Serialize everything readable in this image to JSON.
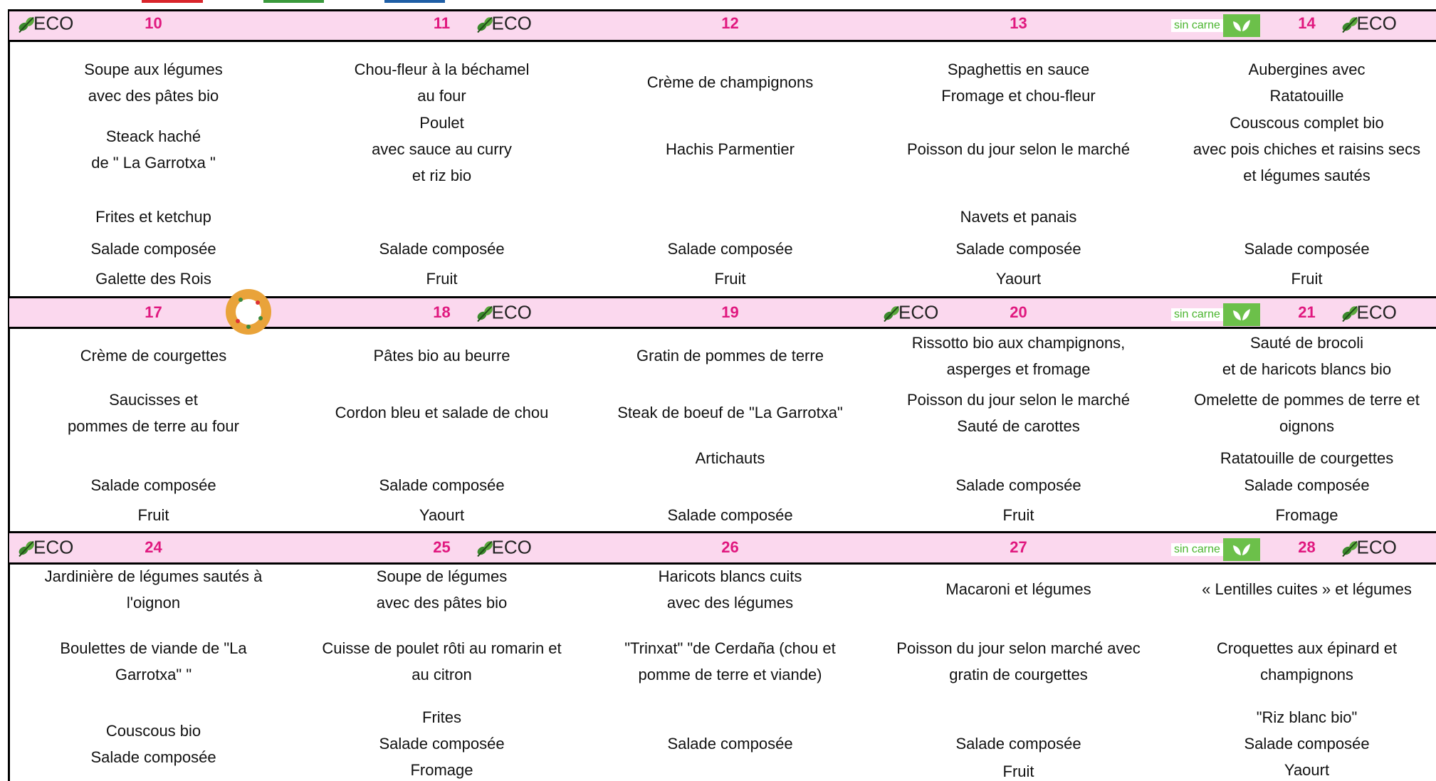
{
  "weeks": [
    {
      "days": [
        {
          "day": "10",
          "badges": [
            "ECO"
          ],
          "slots": [
            [
              "Soupe aux légumes",
              "avec des pâtes bio"
            ],
            [
              "Steack haché",
              "de \" La Garrotxa \""
            ],
            [
              "Frites et ketchup"
            ],
            [
              "Salade composée"
            ],
            [
              "Galette des Rois"
            ]
          ]
        },
        {
          "day": "11",
          "badges": [
            "ECO"
          ],
          "slots": [
            [
              "Chou-fleur à la béchamel",
              "au four"
            ],
            [
              "Poulet",
              "avec sauce au curry",
              "et riz bio"
            ],
            [],
            [
              "Salade composée"
            ],
            [
              "Fruit"
            ]
          ]
        },
        {
          "day": "12",
          "badges": [],
          "slots": [
            [
              "Crème de champignons"
            ],
            [
              "Hachis Parmentier"
            ],
            [],
            [
              "Salade composée"
            ],
            [
              "Fruit"
            ]
          ]
        },
        {
          "day": "13",
          "badges": [],
          "slots": [
            [
              "Spaghettis en sauce",
              "Fromage et chou-fleur"
            ],
            [
              "Poisson du jour selon le marché"
            ],
            [
              "Navets et panais"
            ],
            [
              "Salade composée"
            ],
            [
              "Yaourt"
            ]
          ]
        },
        {
          "day": "14",
          "badges": [
            "sin carne",
            "ECO"
          ],
          "slots": [
            [
              "Aubergines avec",
              "Ratatouille"
            ],
            [
              "Couscous complet  bio",
              "avec pois chiches et raisins secs",
              "et légumes sautés"
            ],
            [],
            [
              "Salade composée"
            ],
            [
              "Fruit"
            ]
          ]
        }
      ]
    },
    {
      "days": [
        {
          "day": "17",
          "badges": [],
          "slots": [
            [
              "Crème de courgettes"
            ],
            [
              "Saucisses et",
              "pommes de terre au four"
            ],
            [],
            [
              "Salade composée"
            ],
            [
              "Fruit"
            ]
          ]
        },
        {
          "day": "18",
          "badges": [
            "ECO"
          ],
          "slots": [
            [
              "Pâtes bio au beurre"
            ],
            [
              "Cordon bleu et salade de chou"
            ],
            [],
            [
              "Salade composée"
            ],
            [
              "Yaourt"
            ]
          ]
        },
        {
          "day": "19",
          "badges": [],
          "slots": [
            [
              "Gratin de pommes de terre"
            ],
            [
              "Steak de boeuf  de \"La Garrotxa\""
            ],
            [
              "Artichauts"
            ],
            [],
            [
              "Salade composée"
            ]
          ]
        },
        {
          "day": "20",
          "badges": [
            "ECO"
          ],
          "slots": [
            [
              "Rissotto bio aux champignons,",
              "asperges et fromage"
            ],
            [
              "Poisson du jour selon le marché",
              "Sauté de carottes"
            ],
            [],
            [
              "Salade composée"
            ],
            [
              "Fruit"
            ]
          ]
        },
        {
          "day": "21",
          "badges": [
            "sin carne",
            "ECO"
          ],
          "slots": [
            [
              "Sauté de brocoli",
              "et de haricots blancs bio"
            ],
            [
              "Omelette de pommes de terre et",
              "oignons"
            ],
            [
              "Ratatouille de courgettes"
            ],
            [
              "Salade composée"
            ],
            [
              "Fromage"
            ]
          ]
        }
      ]
    },
    {
      "days": [
        {
          "day": "24",
          "badges": [
            "ECO"
          ],
          "slots": [
            [
              "Jardinière de légumes sautés à",
              "l'oignon"
            ],
            [
              "Boulettes de viande de \"La",
              "Garrotxa\" \""
            ],
            [
              "Couscous bio",
              "Salade composée"
            ]
          ]
        },
        {
          "day": "25",
          "badges": [
            "ECO"
          ],
          "slots": [
            [
              "Soupe de légumes",
              "avec des pâtes bio"
            ],
            [
              "Cuisse de poulet rôti au romarin et",
              "au citron"
            ],
            [
              "Frites",
              "Salade composée",
              "Fromage"
            ]
          ]
        },
        {
          "day": "26",
          "badges": [],
          "slots": [
            [
              "Haricots blancs cuits",
              "avec des légumes"
            ],
            [
              "\"Trinxat\" \"de Cerdaña (chou et",
              "pomme de terre et viande)"
            ],
            [
              "Salade composée"
            ]
          ]
        },
        {
          "day": "27",
          "badges": [],
          "slots": [
            [
              "Macaroni et légumes"
            ],
            [
              "Poisson du jour selon marché avec",
              "gratin de courgettes"
            ],
            [
              "Salade composée"
            ],
            [
              "Fruit"
            ]
          ]
        },
        {
          "day": "28",
          "badges": [
            "sin carne",
            "ECO"
          ],
          "slots": [
            [
              "« Lentilles cuites » et légumes"
            ],
            [
              "Croquettes aux épinard et",
              "champignons"
            ],
            [
              "\"Riz blanc bio\"",
              "Salade composée",
              "Yaourt"
            ]
          ]
        }
      ]
    }
  ]
}
